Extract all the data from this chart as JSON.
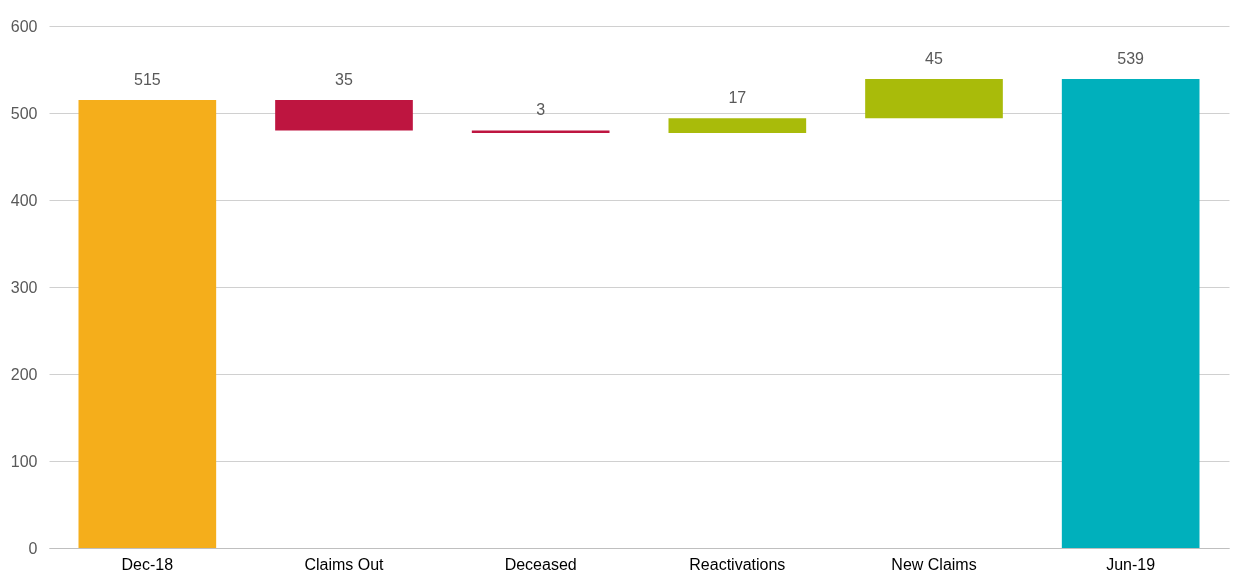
{
  "chart_data": {
    "type": "bar",
    "categories": [
      "Dec-18",
      "Claims Out",
      "Deceased",
      "Reactivations",
      "New Claims",
      "Jun-19"
    ],
    "values": [
      515,
      35,
      3,
      17,
      45,
      539
    ],
    "base": [
      0,
      480,
      477,
      477,
      494,
      0
    ],
    "colors": [
      "#f5ae1b",
      "#be1540",
      "#be1540",
      "#a9bb0a",
      "#a9bb0a",
      "#00b0bc"
    ],
    "data_labels": true,
    "ylim": [
      0,
      600
    ],
    "yticks": [
      0,
      100,
      200,
      300,
      400,
      500,
      600
    ],
    "grid": "y"
  }
}
